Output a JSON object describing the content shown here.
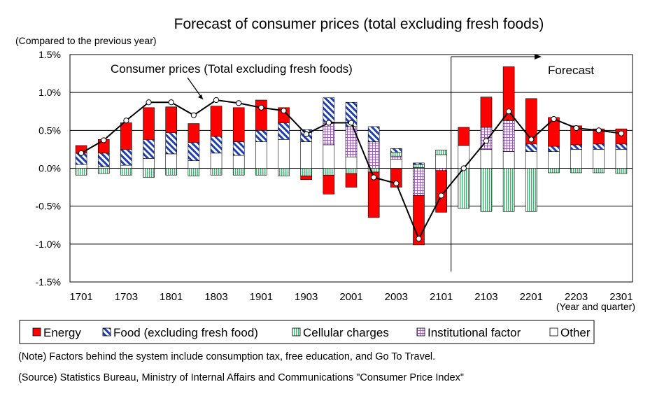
{
  "chart_data": {
    "type": "bar",
    "stacked": true,
    "title": "Forecast of consumer prices (total excluding fresh foods)",
    "ylabel": "(Compared to the previous year)",
    "xlabel": "(Year and quarter)",
    "ylim": [
      -1.5,
      1.5
    ],
    "y_ticks": [
      1.5,
      1.0,
      0.5,
      0.0,
      -0.5,
      -1.0,
      -1.5
    ],
    "y_tick_labels": [
      "1.5%",
      "1.0%",
      "0.5%",
      "0.0%",
      "-0.5%",
      "-1.0%",
      "-1.5%"
    ],
    "grid": true,
    "categories": [
      "1701",
      "1702",
      "1703",
      "1704",
      "1801",
      "1802",
      "1803",
      "1804",
      "1901",
      "1902",
      "1903",
      "1904",
      "2001",
      "2002",
      "2003",
      "2004",
      "2101",
      "2102",
      "2103",
      "2104",
      "2201",
      "2202",
      "2203",
      "2204",
      "2301"
    ],
    "x_tick_labels": [
      "1701",
      "1703",
      "1801",
      "1803",
      "1901",
      "1903",
      "2001",
      "2003",
      "2101",
      "2103",
      "2201",
      "2203",
      "2301"
    ],
    "series": [
      {
        "name": "Energy",
        "color": "#ff0000",
        "values": [
          0.1,
          0.18,
          0.35,
          0.42,
          0.34,
          0.25,
          0.4,
          0.45,
          0.4,
          0.2,
          -0.05,
          -0.25,
          -0.18,
          -0.6,
          -0.25,
          -0.65,
          -0.55,
          0.24,
          0.4,
          0.7,
          0.6,
          0.38,
          0.25,
          0.2,
          0.2
        ]
      },
      {
        "name": "Food (excluding fresh food)",
        "color": "#1f3fae",
        "values": [
          0.15,
          0.18,
          0.21,
          0.25,
          0.28,
          0.24,
          0.22,
          0.18,
          0.15,
          0.22,
          0.16,
          0.32,
          0.32,
          0.2,
          0.05,
          0.02,
          0.0,
          0.0,
          0.0,
          0.01,
          0.1,
          0.07,
          0.06,
          0.07,
          0.07
        ]
      },
      {
        "name": "Cellular charges",
        "color": "#3cb371",
        "values": [
          -0.09,
          -0.07,
          -0.09,
          -0.12,
          -0.09,
          -0.1,
          -0.09,
          -0.09,
          -0.09,
          -0.1,
          -0.1,
          -0.09,
          -0.07,
          -0.05,
          0.05,
          0.04,
          0.06,
          -0.53,
          -0.57,
          -0.57,
          -0.57,
          -0.06,
          -0.06,
          -0.06,
          -0.07
        ]
      },
      {
        "name": "Institutional factor",
        "color": "#9a5fb4",
        "values": [
          0.0,
          0.0,
          0.0,
          0.0,
          0.0,
          0.0,
          0.0,
          0.0,
          0.0,
          0.0,
          0.0,
          0.3,
          0.4,
          0.35,
          0.04,
          -0.36,
          -0.03,
          0.0,
          0.29,
          0.41,
          0.0,
          0.0,
          0.0,
          0.0,
          0.0
        ]
      },
      {
        "name": "Other",
        "color": "#ffffff",
        "values": [
          0.05,
          0.02,
          0.04,
          0.13,
          0.19,
          0.1,
          0.2,
          0.17,
          0.35,
          0.38,
          0.35,
          0.31,
          0.15,
          0.0,
          0.12,
          0.01,
          0.18,
          0.3,
          0.25,
          0.22,
          0.22,
          0.22,
          0.25,
          0.25,
          0.25
        ]
      },
      {
        "name": "Consumer prices (Total excluding fresh foods)",
        "type": "line",
        "color": "#000000",
        "values": [
          0.2,
          0.37,
          0.63,
          0.87,
          0.87,
          0.7,
          0.9,
          0.86,
          0.8,
          0.76,
          0.45,
          0.6,
          0.6,
          -0.12,
          -0.2,
          -0.93,
          -0.36,
          0.0,
          0.36,
          0.75,
          0.38,
          0.65,
          0.53,
          0.5,
          0.46
        ]
      }
    ],
    "line_label": "Consumer prices (Total excluding fresh foods)",
    "forecast_label": "Forecast",
    "forecast_start": "2102",
    "legend_position": "bottom",
    "legend": [
      {
        "label": "Energy",
        "pattern": "energy"
      },
      {
        "label": "Food (excluding fresh food)",
        "pattern": "food"
      },
      {
        "label": "Cellular charges",
        "pattern": "cell"
      },
      {
        "label": "Institutional factor",
        "pattern": "inst"
      },
      {
        "label": "Other",
        "pattern": "other"
      }
    ]
  },
  "notes": {
    "note": "(Note) Factors behind the system include consumption tax, free education, and Go To Travel.",
    "source": "(Source) Statistics Bureau, Ministry of Internal Affairs and Communications \"Consumer Price Index\""
  }
}
